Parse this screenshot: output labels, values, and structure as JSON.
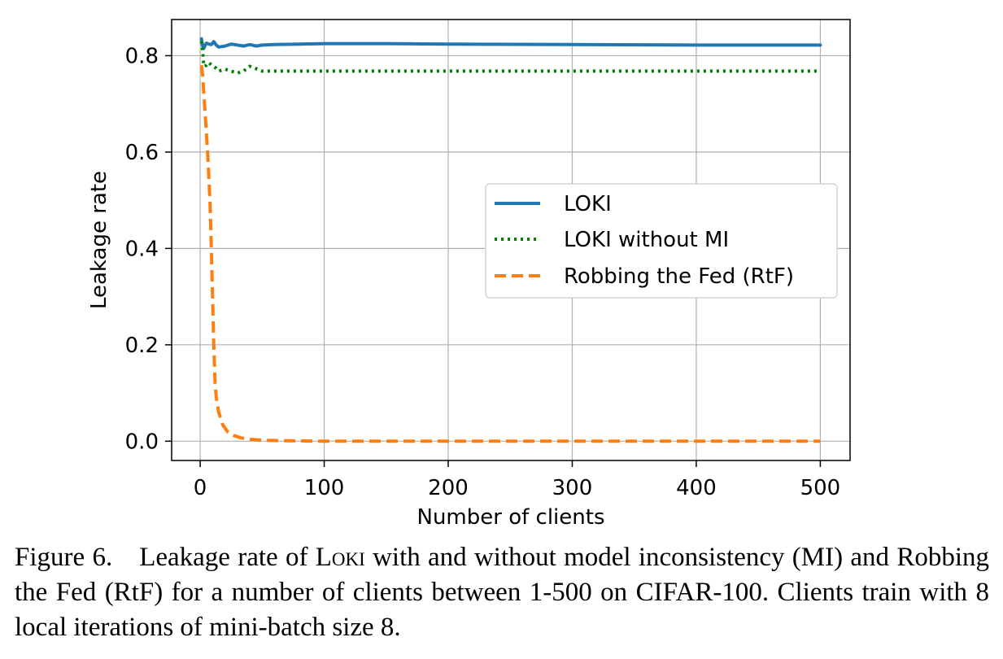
{
  "chart_data": {
    "type": "line",
    "xlabel": "Number of clients",
    "ylabel": "Leakage rate",
    "xlim": [
      -23,
      524
    ],
    "ylim": [
      -0.04,
      0.875
    ],
    "xticks": [
      0,
      100,
      200,
      300,
      400,
      500
    ],
    "yticks": [
      0.0,
      0.2,
      0.4,
      0.6,
      0.8
    ],
    "xtick_labels": [
      "0",
      "100",
      "200",
      "300",
      "400",
      "500"
    ],
    "ytick_labels": [
      "0.0",
      "0.2",
      "0.4",
      "0.6",
      "0.8"
    ],
    "grid": true,
    "legend_position": "center-right",
    "series": [
      {
        "name": "LOKI",
        "color": "#1f77b4",
        "style": "solid",
        "x": [
          1,
          2,
          3,
          4,
          5,
          7,
          9,
          11,
          13,
          15,
          20,
          25,
          30,
          35,
          40,
          45,
          50,
          60,
          80,
          100,
          150,
          200,
          300,
          400,
          500
        ],
        "y": [
          0.835,
          0.82,
          0.815,
          0.822,
          0.826,
          0.824,
          0.823,
          0.829,
          0.822,
          0.818,
          0.82,
          0.824,
          0.822,
          0.82,
          0.823,
          0.82,
          0.822,
          0.823,
          0.824,
          0.825,
          0.825,
          0.824,
          0.823,
          0.822,
          0.822
        ]
      },
      {
        "name": "LOKI without MI",
        "color": "#008000",
        "style": "dotted",
        "x": [
          1,
          2,
          3,
          5,
          7,
          10,
          13,
          15,
          20,
          25,
          30,
          35,
          40,
          45,
          50,
          60,
          80,
          100,
          150,
          200,
          300,
          400,
          500
        ],
        "y": [
          0.83,
          0.81,
          0.778,
          0.78,
          0.786,
          0.778,
          0.774,
          0.768,
          0.772,
          0.768,
          0.764,
          0.768,
          0.778,
          0.773,
          0.768,
          0.768,
          0.768,
          0.768,
          0.768,
          0.768,
          0.768,
          0.768,
          0.768
        ]
      },
      {
        "name": "Robbing the Fed (RtF)",
        "color": "#ff7f0e",
        "style": "dashed",
        "x": [
          1,
          2,
          3,
          4,
          5,
          6,
          7,
          8,
          9,
          10,
          11,
          12,
          13,
          15,
          18,
          22,
          27,
          33,
          40,
          50,
          70,
          100,
          150,
          200,
          300,
          400,
          500
        ],
        "y": [
          0.78,
          0.76,
          0.72,
          0.68,
          0.64,
          0.6,
          0.55,
          0.49,
          0.4,
          0.3,
          0.2,
          0.12,
          0.09,
          0.06,
          0.035,
          0.02,
          0.012,
          0.007,
          0.004,
          0.002,
          0.001,
          0.0,
          0.0,
          0.0,
          0.0,
          0.0,
          0.0
        ]
      }
    ]
  },
  "caption": {
    "prefix": "Figure 6. Leakage rate of ",
    "name": "Loki",
    "rest": " with and without model inconsistency (MI) and Robbing the Fed (RtF) for a number of clients between 1-500 on CIFAR-100. Clients train with 8 local iterations of mini-batch size 8."
  }
}
